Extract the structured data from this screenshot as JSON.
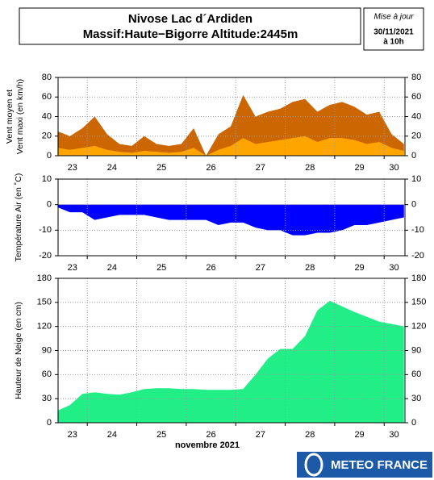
{
  "header": {
    "title_lines": [
      "Nivose Lac d´Ardiden",
      "Massif:Haute−Bigorre Altitude:2445m"
    ],
    "update_lines": [
      "Mise à jour",
      "30/11/2021",
      "à 10h"
    ]
  },
  "logo": "METEO FRANCE",
  "chart_data": [
    {
      "type": "area",
      "y_label": [
        "Vent moyen et",
        "Vent maxi (en km/h)"
      ],
      "x": [
        23.4,
        23.65,
        23.9,
        24.15,
        24.4,
        24.65,
        24.9,
        25.15,
        25.4,
        25.65,
        25.9,
        26.15,
        26.4,
        26.65,
        26.9,
        27.15,
        27.4,
        27.65,
        27.9,
        28.15,
        28.4,
        28.65,
        28.9,
        29.15,
        29.4,
        29.65,
        29.9,
        30.15,
        30.4
      ],
      "series": [
        {
          "color": "#cc6600",
          "values": [
            25,
            20,
            28,
            40,
            22,
            12,
            10,
            20,
            12,
            10,
            12,
            28,
            0,
            22,
            30,
            62,
            40,
            45,
            48,
            55,
            58,
            45,
            52,
            55,
            50,
            42,
            45,
            22,
            12
          ]
        },
        {
          "color": "#ffa500",
          "values": [
            8,
            6,
            8,
            10,
            6,
            4,
            3,
            5,
            4,
            3,
            4,
            8,
            0,
            6,
            10,
            18,
            12,
            14,
            16,
            18,
            20,
            14,
            18,
            18,
            16,
            12,
            14,
            8,
            5
          ]
        }
      ],
      "xlim": [
        23.41,
        30.42
      ],
      "xticks": [
        {
          "value": 23.7,
          "label": "23"
        },
        {
          "value": 24.5,
          "label": "24"
        },
        {
          "value": 25.5,
          "label": "25"
        },
        {
          "value": 26.5,
          "label": "26"
        },
        {
          "value": 27.5,
          "label": "27"
        },
        {
          "value": 28.5,
          "label": "28"
        },
        {
          "value": 29.5,
          "label": "29"
        },
        {
          "value": 30.2,
          "label": "30"
        }
      ],
      "xgrid": [
        24,
        25,
        26,
        27,
        28,
        29,
        30
      ],
      "ylim": [
        0,
        80
      ],
      "yticks": [
        0,
        20,
        40,
        60,
        80
      ]
    },
    {
      "type": "area",
      "y_label": [
        "Température Air (en ˚C)"
      ],
      "x": [
        23.4,
        23.65,
        23.9,
        24.15,
        24.4,
        24.65,
        24.9,
        25.15,
        25.4,
        25.65,
        25.9,
        26.15,
        26.4,
        26.65,
        26.9,
        27.15,
        27.4,
        27.65,
        27.9,
        28.15,
        28.4,
        28.65,
        28.9,
        29.15,
        29.4,
        29.65,
        29.9,
        30.15,
        30.4
      ],
      "series": [
        {
          "color": "#0000ff",
          "values": [
            -1,
            -3,
            -3,
            -6,
            -5,
            -4,
            -4,
            -4,
            -5,
            -6,
            -6,
            -6,
            -6,
            -8,
            -7,
            -7,
            -9,
            -10,
            -10,
            -12,
            -12,
            -11,
            -11,
            -10,
            -8,
            -8,
            -7,
            -6,
            -5
          ]
        }
      ],
      "xlim": [
        23.41,
        30.42
      ],
      "xticks": [
        {
          "value": 23.7,
          "label": "23"
        },
        {
          "value": 24.5,
          "label": "24"
        },
        {
          "value": 25.5,
          "label": "25"
        },
        {
          "value": 26.5,
          "label": "26"
        },
        {
          "value": 27.5,
          "label": "27"
        },
        {
          "value": 28.5,
          "label": "28"
        },
        {
          "value": 29.5,
          "label": "29"
        },
        {
          "value": 30.2,
          "label": "30"
        }
      ],
      "xgrid": [
        24,
        25,
        26,
        27,
        28,
        29,
        30
      ],
      "ylim": [
        -20,
        10
      ],
      "yticks": [
        -20,
        -10,
        0,
        10
      ]
    },
    {
      "type": "area",
      "y_label": [
        "Hauteur de Neige (en cm)"
      ],
      "x_label": "novembre 2021",
      "x": [
        23.4,
        23.65,
        23.9,
        24.15,
        24.4,
        24.65,
        24.9,
        25.15,
        25.4,
        25.65,
        25.9,
        26.15,
        26.4,
        26.65,
        26.9,
        27.15,
        27.4,
        27.65,
        27.9,
        28.15,
        28.4,
        28.65,
        28.9,
        29.15,
        29.4,
        29.65,
        29.9,
        30.15,
        30.4
      ],
      "series": [
        {
          "color": "#22ee88",
          "values": [
            15,
            22,
            36,
            38,
            36,
            35,
            38,
            42,
            43,
            43,
            42,
            42,
            41,
            41,
            41,
            42,
            60,
            80,
            92,
            92,
            108,
            140,
            152,
            145,
            138,
            132,
            126,
            123,
            120
          ]
        }
      ],
      "xlim": [
        23.41,
        30.42
      ],
      "xticks": [
        {
          "value": 23.7,
          "label": "23"
        },
        {
          "value": 24.5,
          "label": "24"
        },
        {
          "value": 25.5,
          "label": "25"
        },
        {
          "value": 26.5,
          "label": "26"
        },
        {
          "value": 27.5,
          "label": "27"
        },
        {
          "value": 28.5,
          "label": "28"
        },
        {
          "value": 29.5,
          "label": "29"
        },
        {
          "value": 30.2,
          "label": "30"
        }
      ],
      "xgrid": [
        24,
        25,
        26,
        27,
        28,
        29,
        30
      ],
      "ylim": [
        0,
        180
      ],
      "yticks": [
        0,
        30,
        60,
        90,
        120,
        150,
        180
      ]
    }
  ]
}
